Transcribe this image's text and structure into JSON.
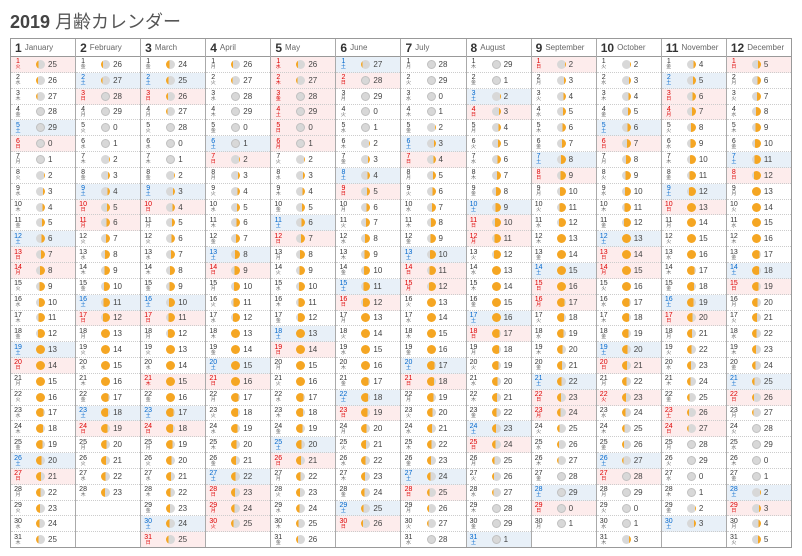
{
  "title_year": "2019",
  "title_label": "月齢カレンダー",
  "dow_chars": [
    "日",
    "月",
    "火",
    "水",
    "木",
    "金",
    "土"
  ],
  "moon_colors": {
    "full": "#f5a623",
    "dark": "#d8d8d8",
    "edge": "#c0c0c0"
  },
  "months": [
    {
      "num": 1,
      "name": "January",
      "first_dow": 2,
      "days": 31,
      "ages": [
        25,
        26,
        27,
        28,
        29,
        0,
        1,
        2,
        3,
        4,
        5,
        6,
        7,
        8,
        9,
        10,
        11,
        12,
        13,
        14,
        15,
        16,
        17,
        18,
        19,
        20,
        21,
        22,
        23,
        24,
        25
      ],
      "hol": [
        1,
        14
      ]
    },
    {
      "num": 2,
      "name": "February",
      "first_dow": 5,
      "days": 28,
      "ages": [
        26,
        27,
        28,
        29,
        0,
        1,
        2,
        3,
        4,
        5,
        6,
        7,
        8,
        9,
        10,
        11,
        12,
        13,
        14,
        15,
        16,
        17,
        18,
        19,
        20,
        21,
        22,
        23
      ],
      "hol": [
        11
      ]
    },
    {
      "num": 3,
      "name": "March",
      "first_dow": 5,
      "days": 31,
      "ages": [
        24,
        25,
        26,
        27,
        28,
        0,
        1,
        2,
        3,
        4,
        5,
        6,
        7,
        8,
        9,
        10,
        11,
        12,
        13,
        14,
        15,
        16,
        17,
        18,
        19,
        20,
        21,
        22,
        23,
        24,
        25
      ],
      "hol": [
        21
      ]
    },
    {
      "num": 4,
      "name": "April",
      "first_dow": 1,
      "days": 30,
      "ages": [
        26,
        27,
        28,
        29,
        0,
        1,
        2,
        3,
        4,
        5,
        6,
        7,
        8,
        9,
        10,
        11,
        12,
        13,
        14,
        15,
        16,
        17,
        18,
        19,
        20,
        21,
        22,
        23,
        24,
        25
      ],
      "hol": [
        29,
        30
      ]
    },
    {
      "num": 5,
      "name": "May",
      "first_dow": 3,
      "days": 31,
      "ages": [
        26,
        27,
        28,
        29,
        0,
        1,
        2,
        3,
        4,
        5,
        6,
        7,
        8,
        9,
        10,
        11,
        12,
        13,
        14,
        15,
        16,
        17,
        18,
        19,
        20,
        21,
        22,
        23,
        24,
        25,
        26
      ],
      "hol": [
        1,
        2,
        3,
        4,
        5,
        6
      ]
    },
    {
      "num": 6,
      "name": "June",
      "first_dow": 6,
      "days": 30,
      "ages": [
        27,
        28,
        29,
        0,
        1,
        2,
        3,
        4,
        5,
        6,
        7,
        8,
        9,
        10,
        11,
        12,
        13,
        14,
        15,
        16,
        17,
        18,
        19,
        20,
        21,
        22,
        23,
        24,
        25,
        26
      ],
      "hol": []
    },
    {
      "num": 7,
      "name": "July",
      "first_dow": 1,
      "days": 31,
      "ages": [
        28,
        29,
        0,
        1,
        2,
        3,
        4,
        5,
        6,
        7,
        8,
        9,
        10,
        11,
        12,
        13,
        14,
        15,
        16,
        17,
        18,
        19,
        20,
        21,
        22,
        23,
        24,
        25,
        26,
        27,
        28
      ],
      "hol": [
        15
      ]
    },
    {
      "num": 8,
      "name": "August",
      "first_dow": 4,
      "days": 31,
      "ages": [
        29,
        1,
        2,
        3,
        4,
        5,
        6,
        7,
        8,
        9,
        10,
        11,
        12,
        13,
        14,
        15,
        16,
        17,
        18,
        19,
        20,
        21,
        22,
        23,
        24,
        25,
        26,
        27,
        28,
        29,
        1
      ],
      "hol": [
        11,
        12
      ]
    },
    {
      "num": 9,
      "name": "September",
      "first_dow": 0,
      "days": 30,
      "ages": [
        2,
        3,
        4,
        5,
        6,
        7,
        8,
        9,
        10,
        11,
        12,
        13,
        14,
        15,
        16,
        17,
        18,
        19,
        20,
        21,
        22,
        23,
        24,
        25,
        26,
        27,
        28,
        29,
        0,
        1
      ],
      "hol": [
        16,
        23
      ]
    },
    {
      "num": 10,
      "name": "October",
      "first_dow": 2,
      "days": 31,
      "ages": [
        2,
        3,
        4,
        5,
        6,
        7,
        8,
        9,
        10,
        11,
        12,
        13,
        14,
        15,
        16,
        17,
        18,
        19,
        20,
        21,
        22,
        23,
        24,
        25,
        26,
        27,
        28,
        29,
        0,
        1,
        3
      ],
      "hol": [
        14,
        22
      ]
    },
    {
      "num": 11,
      "name": "November",
      "first_dow": 5,
      "days": 30,
      "ages": [
        4,
        5,
        6,
        7,
        8,
        9,
        10,
        11,
        12,
        13,
        14,
        15,
        16,
        17,
        18,
        19,
        20,
        21,
        22,
        23,
        24,
        25,
        26,
        27,
        28,
        29,
        0,
        1,
        2,
        3
      ],
      "hol": [
        3,
        4,
        23
      ]
    },
    {
      "num": 12,
      "name": "December",
      "first_dow": 0,
      "days": 31,
      "ages": [
        5,
        6,
        7,
        8,
        9,
        10,
        11,
        12,
        13,
        14,
        15,
        16,
        17,
        18,
        19,
        20,
        21,
        22,
        23,
        24,
        25,
        26,
        27,
        28,
        29,
        0,
        1,
        2,
        3,
        4,
        5
      ],
      "hol": []
    }
  ]
}
